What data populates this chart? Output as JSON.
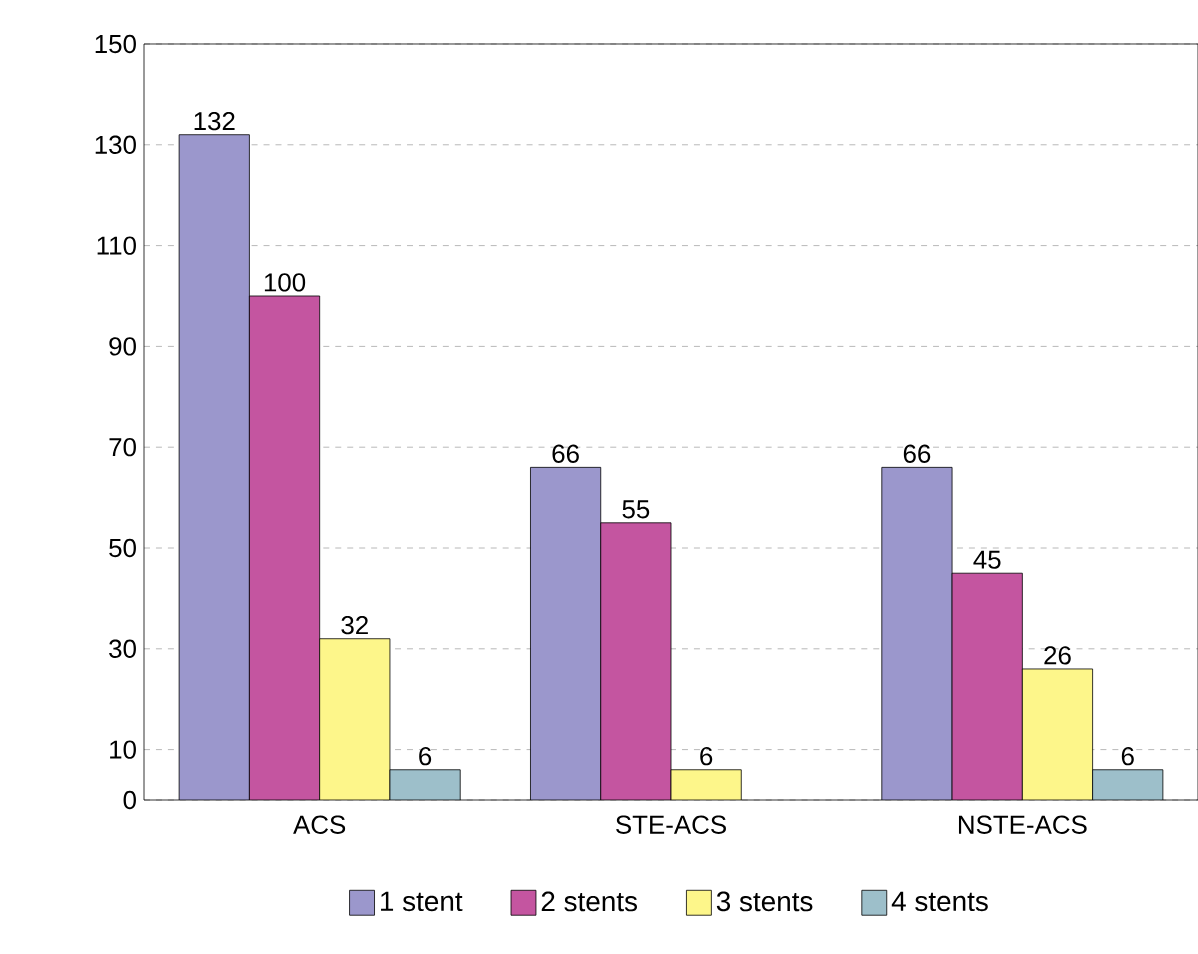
{
  "chart_data": {
    "type": "bar",
    "categories": [
      "ACS",
      "STE-ACS",
      "NSTE-ACS"
    ],
    "series": [
      {
        "name": "1 stent",
        "color": "#9b97cc",
        "values": [
          132,
          66,
          66
        ]
      },
      {
        "name": "2 stents",
        "color": "#c455a0",
        "values": [
          100,
          55,
          45
        ]
      },
      {
        "name": "3 stents",
        "color": "#fdf68a",
        "values": [
          32,
          6,
          26
        ]
      },
      {
        "name": "4 stents",
        "color": "#9dbfca",
        "values": [
          6,
          null,
          6
        ]
      }
    ],
    "ylim": [
      0,
      150
    ],
    "yticks": [
      0,
      10,
      30,
      50,
      70,
      90,
      110,
      130,
      150
    ],
    "grid": "y",
    "legend": "bottom",
    "data_labels": true
  }
}
